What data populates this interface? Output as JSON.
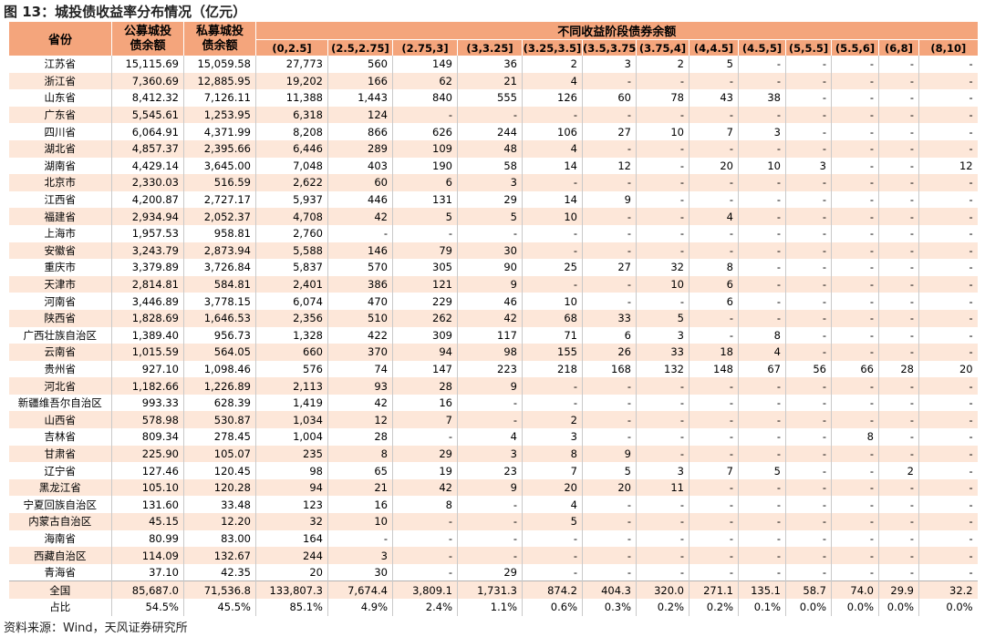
{
  "title": "图 13：城投债收益率分布情况（亿元）",
  "header": {
    "province": "省份",
    "public": "公募城投债余额",
    "private": "私募城投债余额",
    "group": "不同收益阶段债券余额",
    "ranges": [
      "(0,2.5]",
      "(2.5,2.75]",
      "(2.75,3]",
      "(3,3.25]",
      "(3.25,3.5]",
      "(3.5,3.75]",
      "(3.75,4]",
      "(4,4.5]",
      "(4.5,5]",
      "(5,5.5]",
      "(5.5,6]",
      "(6,8]",
      "(8,10]"
    ]
  },
  "rows": [
    {
      "name": "江苏省",
      "pub": "15,115.69",
      "pri": "15,059.58",
      "v": [
        "27,773",
        "560",
        "149",
        "36",
        "2",
        "3",
        "2",
        "5",
        "-",
        "-",
        "-",
        "-",
        "-"
      ]
    },
    {
      "name": "浙江省",
      "pub": "7,360.69",
      "pri": "12,885.95",
      "v": [
        "19,202",
        "166",
        "62",
        "21",
        "4",
        "-",
        "-",
        "-",
        "-",
        "-",
        "-",
        "-",
        "-"
      ]
    },
    {
      "name": "山东省",
      "pub": "8,412.32",
      "pri": "7,126.11",
      "v": [
        "11,388",
        "1,443",
        "840",
        "555",
        "126",
        "60",
        "78",
        "43",
        "38",
        "-",
        "-",
        "-",
        "-"
      ]
    },
    {
      "name": "广东省",
      "pub": "5,545.61",
      "pri": "1,253.95",
      "v": [
        "6,318",
        "124",
        "-",
        "-",
        "-",
        "-",
        "-",
        "-",
        "-",
        "-",
        "-",
        "-",
        "-"
      ]
    },
    {
      "name": "四川省",
      "pub": "6,064.91",
      "pri": "4,371.99",
      "v": [
        "8,208",
        "866",
        "626",
        "244",
        "106",
        "27",
        "10",
        "7",
        "3",
        "-",
        "-",
        "-",
        "-"
      ]
    },
    {
      "name": "湖北省",
      "pub": "4,857.37",
      "pri": "2,395.66",
      "v": [
        "6,446",
        "289",
        "109",
        "48",
        "4",
        "-",
        "-",
        "-",
        "-",
        "-",
        "-",
        "-",
        "-"
      ]
    },
    {
      "name": "湖南省",
      "pub": "4,429.14",
      "pri": "3,645.00",
      "v": [
        "7,048",
        "403",
        "190",
        "58",
        "14",
        "12",
        "-",
        "20",
        "10",
        "3",
        "-",
        "-",
        "12"
      ]
    },
    {
      "name": "北京市",
      "pub": "2,330.03",
      "pri": "516.59",
      "v": [
        "2,622",
        "60",
        "6",
        "3",
        "-",
        "-",
        "-",
        "-",
        "-",
        "-",
        "-",
        "-",
        "-"
      ]
    },
    {
      "name": "江西省",
      "pub": "4,200.87",
      "pri": "2,727.17",
      "v": [
        "5,937",
        "446",
        "131",
        "29",
        "14",
        "9",
        "-",
        "-",
        "-",
        "-",
        "-",
        "-",
        "-"
      ]
    },
    {
      "name": "福建省",
      "pub": "2,934.94",
      "pri": "2,052.37",
      "v": [
        "4,708",
        "42",
        "5",
        "5",
        "10",
        "-",
        "-",
        "4",
        "-",
        "-",
        "-",
        "-",
        "-"
      ]
    },
    {
      "name": "上海市",
      "pub": "1,957.53",
      "pri": "958.81",
      "v": [
        "2,760",
        "-",
        "-",
        "-",
        "-",
        "-",
        "-",
        "-",
        "-",
        "-",
        "-",
        "-",
        "-"
      ]
    },
    {
      "name": "安徽省",
      "pub": "3,243.79",
      "pri": "2,873.94",
      "v": [
        "5,588",
        "146",
        "79",
        "30",
        "-",
        "-",
        "-",
        "-",
        "-",
        "-",
        "-",
        "-",
        "-"
      ]
    },
    {
      "name": "重庆市",
      "pub": "3,379.89",
      "pri": "3,726.84",
      "v": [
        "5,837",
        "570",
        "305",
        "90",
        "25",
        "27",
        "32",
        "8",
        "-",
        "-",
        "-",
        "-",
        "-"
      ]
    },
    {
      "name": "天津市",
      "pub": "2,814.81",
      "pri": "584.81",
      "v": [
        "2,401",
        "386",
        "121",
        "9",
        "-",
        "-",
        "10",
        "6",
        "-",
        "-",
        "-",
        "-",
        "-"
      ]
    },
    {
      "name": "河南省",
      "pub": "3,446.89",
      "pri": "3,778.15",
      "v": [
        "6,074",
        "470",
        "229",
        "46",
        "10",
        "-",
        "-",
        "6",
        "-",
        "-",
        "-",
        "-",
        "-"
      ]
    },
    {
      "name": "陕西省",
      "pub": "1,828.69",
      "pri": "1,646.53",
      "v": [
        "2,356",
        "510",
        "262",
        "42",
        "68",
        "33",
        "5",
        "-",
        "-",
        "-",
        "-",
        "-",
        "-"
      ]
    },
    {
      "name": "广西壮族自治区",
      "pub": "1,389.40",
      "pri": "956.73",
      "v": [
        "1,328",
        "422",
        "309",
        "117",
        "71",
        "6",
        "3",
        "-",
        "8",
        "-",
        "-",
        "-",
        "-"
      ]
    },
    {
      "name": "云南省",
      "pub": "1,015.59",
      "pri": "564.05",
      "v": [
        "660",
        "370",
        "94",
        "98",
        "155",
        "26",
        "33",
        "18",
        "4",
        "-",
        "-",
        "-",
        "-"
      ]
    },
    {
      "name": "贵州省",
      "pub": "927.10",
      "pri": "1,098.46",
      "v": [
        "576",
        "74",
        "147",
        "223",
        "218",
        "168",
        "132",
        "148",
        "67",
        "56",
        "66",
        "28",
        "20"
      ]
    },
    {
      "name": "河北省",
      "pub": "1,182.66",
      "pri": "1,226.89",
      "v": [
        "2,113",
        "93",
        "28",
        "9",
        "-",
        "-",
        "-",
        "-",
        "-",
        "-",
        "-",
        "-",
        "-"
      ]
    },
    {
      "name": "新疆维吾尔自治区",
      "pub": "993.33",
      "pri": "628.39",
      "v": [
        "1,419",
        "42",
        "16",
        "-",
        "-",
        "-",
        "-",
        "-",
        "-",
        "-",
        "-",
        "-",
        "-"
      ]
    },
    {
      "name": "山西省",
      "pub": "578.98",
      "pri": "530.87",
      "v": [
        "1,034",
        "12",
        "7",
        "-",
        "2",
        "-",
        "-",
        "-",
        "-",
        "-",
        "-",
        "-",
        "-"
      ]
    },
    {
      "name": "吉林省",
      "pub": "809.34",
      "pri": "278.45",
      "v": [
        "1,004",
        "28",
        "-",
        "4",
        "3",
        "-",
        "-",
        "-",
        "-",
        "-",
        "8",
        "-",
        "-"
      ]
    },
    {
      "name": "甘肃省",
      "pub": "225.90",
      "pri": "105.07",
      "v": [
        "235",
        "8",
        "29",
        "3",
        "8",
        "9",
        "-",
        "-",
        "-",
        "-",
        "-",
        "-",
        "-"
      ]
    },
    {
      "name": "辽宁省",
      "pub": "127.46",
      "pri": "120.45",
      "v": [
        "98",
        "65",
        "19",
        "23",
        "7",
        "5",
        "3",
        "7",
        "5",
        "-",
        "-",
        "2",
        "-"
      ]
    },
    {
      "name": "黑龙江省",
      "pub": "105.10",
      "pri": "120.28",
      "v": [
        "94",
        "21",
        "42",
        "9",
        "20",
        "20",
        "11",
        "-",
        "-",
        "-",
        "-",
        "-",
        "-"
      ]
    },
    {
      "name": "宁夏回族自治区",
      "pub": "131.60",
      "pri": "33.48",
      "v": [
        "123",
        "16",
        "8",
        "-",
        "4",
        "-",
        "-",
        "-",
        "-",
        "-",
        "-",
        "-",
        "-"
      ]
    },
    {
      "name": "内蒙古自治区",
      "pub": "45.15",
      "pri": "12.20",
      "v": [
        "32",
        "10",
        "-",
        "-",
        "5",
        "-",
        "-",
        "-",
        "-",
        "-",
        "-",
        "-",
        "-"
      ]
    },
    {
      "name": "海南省",
      "pub": "80.99",
      "pri": "83.00",
      "v": [
        "164",
        "-",
        "-",
        "-",
        "-",
        "-",
        "-",
        "-",
        "-",
        "-",
        "-",
        "-",
        "-"
      ]
    },
    {
      "name": "西藏自治区",
      "pub": "114.09",
      "pri": "132.67",
      "v": [
        "244",
        "3",
        "-",
        "-",
        "-",
        "-",
        "-",
        "-",
        "-",
        "-",
        "-",
        "-",
        "-"
      ]
    },
    {
      "name": "青海省",
      "pub": "37.10",
      "pri": "42.35",
      "v": [
        "20",
        "30",
        "-",
        "29",
        "-",
        "-",
        "-",
        "-",
        "-",
        "-",
        "-",
        "-",
        "-"
      ]
    },
    {
      "name": "全国",
      "pub": "85,687.0",
      "pri": "71,536.8",
      "v": [
        "133,807.3",
        "7,674.4",
        "3,809.1",
        "1,731.3",
        "874.2",
        "404.3",
        "320.0",
        "271.1",
        "135.1",
        "58.7",
        "74.0",
        "29.9",
        "32.2"
      ]
    },
    {
      "name": "占比",
      "pub": "54.5%",
      "pri": "45.5%",
      "v": [
        "85.1%",
        "4.9%",
        "2.4%",
        "1.1%",
        "0.6%",
        "0.3%",
        "0.2%",
        "0.2%",
        "0.1%",
        "0.0%",
        "0.0%",
        "0.0%",
        "0.0%"
      ]
    }
  ],
  "footer": "资料来源：Wind，天风证券研究所"
}
